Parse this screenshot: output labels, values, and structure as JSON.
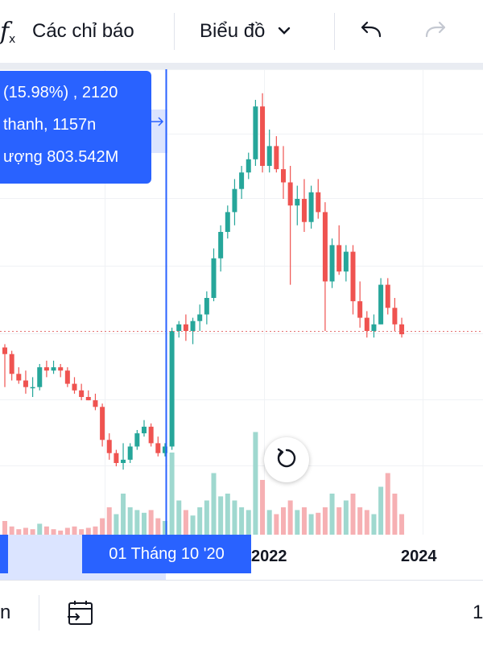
{
  "toolbar": {
    "indicators_label": "Các chỉ báo",
    "chart_type_label": "Biểu đồ"
  },
  "tooltip": {
    "line1": "(15.98%) , 2120",
    "line2": "thanh, 1157n",
    "line3": "ượng 803.542M"
  },
  "crosshair_date": "01 Tháng 10 '20",
  "bottom": {
    "left_text": "n",
    "right_text": "1"
  },
  "colors": {
    "up": "#26a69a",
    "down": "#ef5350",
    "up_volume": "#9fd8cf",
    "down_volume": "#f6b0b3",
    "crosshair": "#2962ff",
    "last_price_line": "#e57373"
  },
  "chart_data": {
    "type": "candlestick",
    "x_ticks": [
      "2022",
      "2024"
    ],
    "price_axis_visible": false,
    "grid": true,
    "price_range": [
      0,
      100
    ],
    "volume_range": [
      0,
      100
    ],
    "candles": [
      {
        "o": 35,
        "h": 36,
        "l": 23,
        "c": 33
      },
      {
        "o": 33,
        "h": 34,
        "l": 25,
        "c": 27
      },
      {
        "o": 27,
        "h": 29,
        "l": 24,
        "c": 25
      },
      {
        "o": 25,
        "h": 28,
        "l": 21,
        "c": 23
      },
      {
        "o": 23,
        "h": 26,
        "l": 20,
        "c": 23
      },
      {
        "o": 23,
        "h": 30,
        "l": 22,
        "c": 29
      },
      {
        "o": 29,
        "h": 31,
        "l": 26,
        "c": 28
      },
      {
        "o": 28,
        "h": 31,
        "l": 27,
        "c": 29
      },
      {
        "o": 29,
        "h": 30,
        "l": 26,
        "c": 28
      },
      {
        "o": 28,
        "h": 29,
        "l": 23,
        "c": 24
      },
      {
        "o": 24,
        "h": 26,
        "l": 21,
        "c": 22
      },
      {
        "o": 22,
        "h": 24,
        "l": 19,
        "c": 20
      },
      {
        "o": 20,
        "h": 22,
        "l": 19,
        "c": 19
      },
      {
        "o": 19,
        "h": 21,
        "l": 16,
        "c": 17
      },
      {
        "o": 17,
        "h": 18,
        "l": 5,
        "c": 7
      },
      {
        "o": 7,
        "h": 9,
        "l": 1,
        "c": 3
      },
      {
        "o": 3,
        "h": 4,
        "l": -1,
        "c": 0
      },
      {
        "o": 0,
        "h": 6,
        "l": -2,
        "c": 1
      },
      {
        "o": 1,
        "h": 6,
        "l": 0,
        "c": 5
      },
      {
        "o": 5,
        "h": 10,
        "l": 4,
        "c": 9
      },
      {
        "o": 9,
        "h": 13,
        "l": 8,
        "c": 11
      },
      {
        "o": 11,
        "h": 12,
        "l": 5,
        "c": 6
      },
      {
        "o": 6,
        "h": 8,
        "l": 2,
        "c": 3
      },
      {
        "o": 3,
        "h": 6,
        "l": 2,
        "c": 5
      },
      {
        "o": 5,
        "h": 41,
        "l": 4,
        "c": 40
      },
      {
        "o": 40,
        "h": 43,
        "l": 38,
        "c": 42
      },
      {
        "o": 42,
        "h": 45,
        "l": 37,
        "c": 40
      },
      {
        "o": 40,
        "h": 44,
        "l": 36,
        "c": 43
      },
      {
        "o": 43,
        "h": 48,
        "l": 40,
        "c": 45
      },
      {
        "o": 45,
        "h": 52,
        "l": 42,
        "c": 50
      },
      {
        "o": 50,
        "h": 65,
        "l": 49,
        "c": 62
      },
      {
        "o": 62,
        "h": 72,
        "l": 58,
        "c": 70
      },
      {
        "o": 70,
        "h": 78,
        "l": 68,
        "c": 76
      },
      {
        "o": 76,
        "h": 86,
        "l": 72,
        "c": 83
      },
      {
        "o": 83,
        "h": 90,
        "l": 80,
        "c": 88
      },
      {
        "o": 88,
        "h": 94,
        "l": 86,
        "c": 92
      },
      {
        "o": 92,
        "h": 110,
        "l": 90,
        "c": 108
      },
      {
        "o": 108,
        "h": 112,
        "l": 88,
        "c": 90
      },
      {
        "o": 90,
        "h": 101,
        "l": 88,
        "c": 96
      },
      {
        "o": 96,
        "h": 99,
        "l": 88,
        "c": 89
      },
      {
        "o": 89,
        "h": 96,
        "l": 80,
        "c": 85
      },
      {
        "o": 85,
        "h": 90,
        "l": 54,
        "c": 78
      },
      {
        "o": 78,
        "h": 84,
        "l": 72,
        "c": 80
      },
      {
        "o": 80,
        "h": 86,
        "l": 70,
        "c": 73
      },
      {
        "o": 73,
        "h": 84,
        "l": 71,
        "c": 82
      },
      {
        "o": 82,
        "h": 86,
        "l": 74,
        "c": 76
      },
      {
        "o": 76,
        "h": 79,
        "l": 40,
        "c": 55
      },
      {
        "o": 55,
        "h": 68,
        "l": 53,
        "c": 66
      },
      {
        "o": 66,
        "h": 72,
        "l": 57,
        "c": 58
      },
      {
        "o": 58,
        "h": 66,
        "l": 55,
        "c": 64
      },
      {
        "o": 64,
        "h": 66,
        "l": 45,
        "c": 49
      },
      {
        "o": 49,
        "h": 55,
        "l": 41,
        "c": 44
      },
      {
        "o": 44,
        "h": 46,
        "l": 38,
        "c": 40
      },
      {
        "o": 40,
        "h": 45,
        "l": 38,
        "c": 42
      },
      {
        "o": 42,
        "h": 56,
        "l": 42,
        "c": 54
      },
      {
        "o": 54,
        "h": 56,
        "l": 45,
        "c": 47
      },
      {
        "o": 47,
        "h": 50,
        "l": 40,
        "c": 42
      },
      {
        "o": 42,
        "h": 44,
        "l": 38,
        "c": 39
      }
    ],
    "volumes": [
      [
        10,
        "down"
      ],
      [
        6,
        "down"
      ],
      [
        4,
        "down"
      ],
      [
        5,
        "down"
      ],
      [
        4,
        "down"
      ],
      [
        8,
        "up"
      ],
      [
        6,
        "down"
      ],
      [
        4,
        "down"
      ],
      [
        3,
        "down"
      ],
      [
        5,
        "down"
      ],
      [
        6,
        "down"
      ],
      [
        4,
        "down"
      ],
      [
        5,
        "down"
      ],
      [
        6,
        "down"
      ],
      [
        12,
        "down"
      ],
      [
        20,
        "down"
      ],
      [
        15,
        "up"
      ],
      [
        30,
        "up"
      ],
      [
        20,
        "up"
      ],
      [
        18,
        "up"
      ],
      [
        16,
        "up"
      ],
      [
        18,
        "down"
      ],
      [
        12,
        "down"
      ],
      [
        10,
        "up"
      ],
      [
        60,
        "up"
      ],
      [
        25,
        "up"
      ],
      [
        18,
        "down"
      ],
      [
        14,
        "up"
      ],
      [
        20,
        "up"
      ],
      [
        25,
        "up"
      ],
      [
        45,
        "up"
      ],
      [
        28,
        "up"
      ],
      [
        30,
        "up"
      ],
      [
        25,
        "up"
      ],
      [
        20,
        "up"
      ],
      [
        18,
        "up"
      ],
      [
        75,
        "up"
      ],
      [
        40,
        "down"
      ],
      [
        18,
        "up"
      ],
      [
        15,
        "down"
      ],
      [
        20,
        "down"
      ],
      [
        25,
        "down"
      ],
      [
        18,
        "up"
      ],
      [
        20,
        "down"
      ],
      [
        15,
        "up"
      ],
      [
        16,
        "down"
      ],
      [
        20,
        "down"
      ],
      [
        30,
        "up"
      ],
      [
        20,
        "down"
      ],
      [
        25,
        "up"
      ],
      [
        30,
        "down"
      ],
      [
        20,
        "down"
      ],
      [
        18,
        "down"
      ],
      [
        15,
        "up"
      ],
      [
        35,
        "up"
      ],
      [
        45,
        "down"
      ],
      [
        30,
        "down"
      ],
      [
        15,
        "down"
      ]
    ],
    "last_price": 40
  }
}
